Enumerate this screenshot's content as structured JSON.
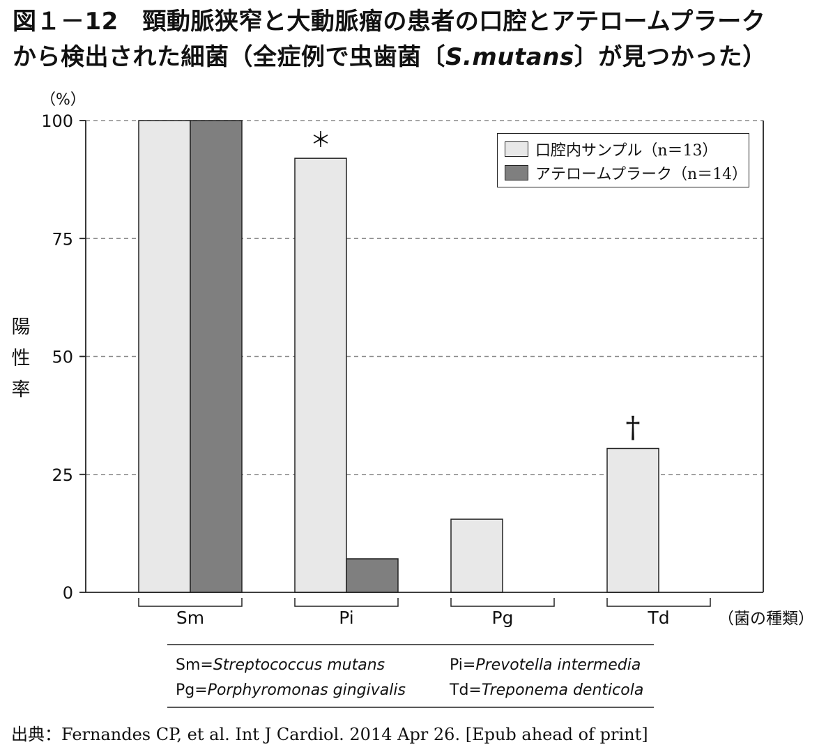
{
  "title": {
    "line1": "図１－12　頸動脈狭窄と大動脈瘤の患者の口腔とアテロームプラーク",
    "line2_prefix": "から検出された細菌（全症例で虫歯菌〔",
    "line2_italic": "S.mutans",
    "line2_suffix": "〕が見つかった）"
  },
  "chart_data": {
    "type": "bar",
    "unit_label": "（%）",
    "ylabel": "陽性率",
    "xlabel": "（菌の種類）",
    "ylim": [
      0,
      100
    ],
    "yticks": [
      "0",
      "25",
      "50",
      "75",
      "100"
    ],
    "grid": "dashed horizontal at 25, 50, 75, 100",
    "legend_position": "top-right",
    "categories": [
      "Sm",
      "Pi",
      "Pg",
      "Td"
    ],
    "series": [
      {
        "name": "口腔内サンプル（n＝13）",
        "color": "#e8e8e8",
        "values": [
          100,
          92,
          15.5,
          30.5
        ]
      },
      {
        "name": "アテロームプラーク（n＝14）",
        "color": "#7f7f7f",
        "values": [
          100,
          7.1,
          0,
          0
        ]
      }
    ],
    "annotations": [
      {
        "category": "Pi",
        "text": "＊"
      },
      {
        "category": "Td",
        "text": "†"
      }
    ],
    "abbreviations": [
      {
        "abbr": "Sm=",
        "name": "Streptococcus mutans"
      },
      {
        "abbr": "Pi=",
        "name": "Prevotella intermedia"
      },
      {
        "abbr": "Pg=",
        "name": "Porphyromonas gingivalis"
      },
      {
        "abbr": "Td=",
        "name": "Treponema denticola"
      }
    ]
  },
  "source": "出典：Fernandes CP, et al. Int J Cardiol. 2014 Apr 26. [Epub ahead of print]"
}
